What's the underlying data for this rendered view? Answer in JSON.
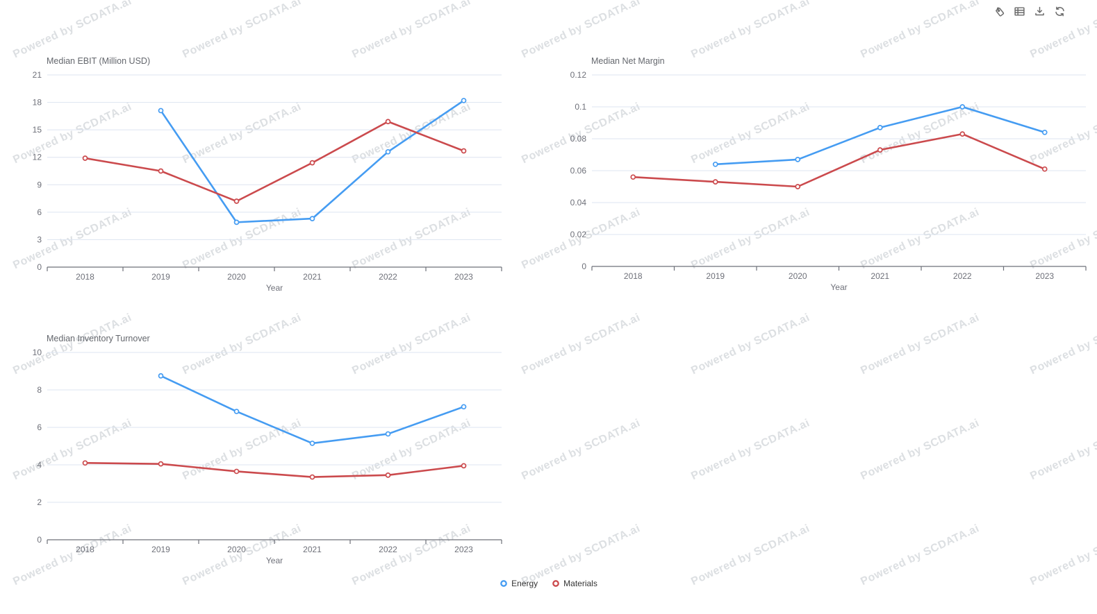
{
  "page": {
    "background": "#ffffff"
  },
  "watermark": {
    "text": "Powered by SCDATA.ai"
  },
  "toolbar": {
    "buttons": [
      {
        "name": "tag",
        "label": "Tag"
      },
      {
        "name": "data-view",
        "label": "Data View"
      },
      {
        "name": "download",
        "label": "Save as Image"
      },
      {
        "name": "refresh",
        "label": "Refresh"
      }
    ]
  },
  "legend": {
    "position": "bottom-center",
    "items": [
      {
        "label": "Energy",
        "color": "#459cf2"
      },
      {
        "label": "Materials",
        "color": "#cb4a4d"
      }
    ]
  },
  "colors": {
    "energy": "#459cf2",
    "materials": "#cb4a4d",
    "gridline": "#dde4f0",
    "axis": "#6E7079",
    "tick_label": "#6E7079",
    "title": "#64676d"
  },
  "chart_data": [
    {
      "type": "line",
      "title": "Median EBIT (Million USD)",
      "xlabel": "Year",
      "categories": [
        "2018",
        "2019",
        "2020",
        "2021",
        "2022",
        "2023"
      ],
      "ylim": [
        0,
        21
      ],
      "yticks": [
        "0",
        "3",
        "6",
        "9",
        "12",
        "15",
        "18",
        "21"
      ],
      "grid": true,
      "legend_position": "bottom",
      "series": [
        {
          "name": "Energy",
          "color": "#459cf2",
          "values": [
            null,
            17.1,
            4.9,
            5.3,
            12.6,
            18.2
          ]
        },
        {
          "name": "Materials",
          "color": "#cb4a4d",
          "values": [
            11.9,
            10.5,
            7.2,
            11.4,
            15.9,
            12.7
          ]
        }
      ]
    },
    {
      "type": "line",
      "title": "Median Net Margin",
      "xlabel": "Year",
      "categories": [
        "2018",
        "2019",
        "2020",
        "2021",
        "2022",
        "2023"
      ],
      "ylim": [
        0,
        0.12
      ],
      "yticks": [
        "0",
        "0.02",
        "0.04",
        "0.06",
        "0.08",
        "0.1",
        "0.12"
      ],
      "grid": true,
      "legend_position": "bottom",
      "series": [
        {
          "name": "Energy",
          "color": "#459cf2",
          "values": [
            null,
            0.064,
            0.067,
            0.087,
            0.1,
            0.084
          ]
        },
        {
          "name": "Materials",
          "color": "#cb4a4d",
          "values": [
            0.056,
            0.053,
            0.05,
            0.073,
            0.083,
            0.061
          ]
        }
      ]
    },
    {
      "type": "line",
      "title": "Median Inventory Turnover",
      "xlabel": "Year",
      "categories": [
        "2018",
        "2019",
        "2020",
        "2021",
        "2022",
        "2023"
      ],
      "ylim": [
        0,
        10
      ],
      "yticks": [
        "0",
        "2",
        "4",
        "6",
        "8",
        "10"
      ],
      "grid": true,
      "legend_position": "bottom",
      "series": [
        {
          "name": "Energy",
          "color": "#459cf2",
          "values": [
            null,
            8.75,
            6.85,
            5.15,
            5.65,
            7.1
          ]
        },
        {
          "name": "Materials",
          "color": "#cb4a4d",
          "values": [
            4.1,
            4.05,
            3.65,
            3.35,
            3.45,
            3.95
          ]
        }
      ]
    }
  ]
}
